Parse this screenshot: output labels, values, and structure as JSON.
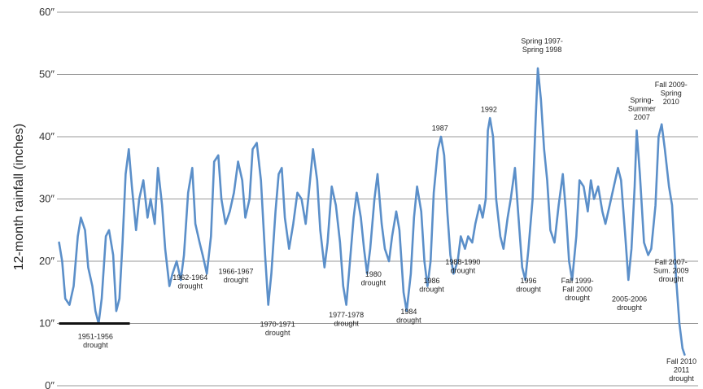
{
  "chart_data": {
    "type": "line",
    "title": "",
    "xlabel": "",
    "ylabel": "12-month rainfall (inches)",
    "ylim": [
      0,
      60
    ],
    "yticks": [
      {
        "value": 0,
        "label": "0″"
      },
      {
        "value": 10,
        "label": "10″"
      },
      {
        "value": 20,
        "label": "20″"
      },
      {
        "value": 30,
        "label": "30″"
      },
      {
        "value": 40,
        "label": "40″"
      },
      {
        "value": 50,
        "label": "50″"
      },
      {
        "value": 60,
        "label": "60″"
      }
    ],
    "xlim": [
      1950,
      2011.6
    ],
    "grid": true,
    "line_color": "#5b8fc9",
    "grid_color": "#999999",
    "drought_bar_color": "#111111",
    "series": [
      {
        "values": [
          [
            1950.2,
            23
          ],
          [
            1950.5,
            20
          ],
          [
            1950.8,
            14
          ],
          [
            1951.2,
            13
          ],
          [
            1951.6,
            16
          ],
          [
            1952.0,
            24
          ],
          [
            1952.3,
            27
          ],
          [
            1952.7,
            25
          ],
          [
            1953.0,
            19
          ],
          [
            1953.4,
            16
          ],
          [
            1953.7,
            12
          ],
          [
            1954.0,
            10
          ],
          [
            1954.3,
            14
          ],
          [
            1954.7,
            24
          ],
          [
            1955.0,
            25
          ],
          [
            1955.4,
            21
          ],
          [
            1955.7,
            12
          ],
          [
            1956.0,
            14
          ],
          [
            1956.3,
            23
          ],
          [
            1956.6,
            34
          ],
          [
            1956.9,
            38
          ],
          [
            1957.2,
            32
          ],
          [
            1957.6,
            25
          ],
          [
            1957.9,
            30
          ],
          [
            1958.3,
            33
          ],
          [
            1958.7,
            27
          ],
          [
            1959.0,
            30
          ],
          [
            1959.4,
            26
          ],
          [
            1959.7,
            35
          ],
          [
            1960.1,
            29
          ],
          [
            1960.4,
            22
          ],
          [
            1960.8,
            16
          ],
          [
            1961.1,
            18
          ],
          [
            1961.5,
            20
          ],
          [
            1961.9,
            17
          ],
          [
            1962.2,
            21
          ],
          [
            1962.6,
            31
          ],
          [
            1963.0,
            35
          ],
          [
            1963.3,
            26
          ],
          [
            1963.7,
            23
          ],
          [
            1964.0,
            21
          ],
          [
            1964.4,
            18
          ],
          [
            1964.8,
            24
          ],
          [
            1965.1,
            36
          ],
          [
            1965.5,
            37
          ],
          [
            1965.8,
            30
          ],
          [
            1966.2,
            26
          ],
          [
            1966.6,
            28
          ],
          [
            1967.0,
            31
          ],
          [
            1967.4,
            36
          ],
          [
            1967.8,
            33
          ],
          [
            1968.1,
            27
          ],
          [
            1968.5,
            30
          ],
          [
            1968.8,
            38
          ],
          [
            1969.2,
            39
          ],
          [
            1969.6,
            33
          ],
          [
            1970.0,
            21
          ],
          [
            1970.3,
            13
          ],
          [
            1970.6,
            18
          ],
          [
            1971.0,
            28
          ],
          [
            1971.3,
            34
          ],
          [
            1971.6,
            35
          ],
          [
            1971.9,
            27
          ],
          [
            1972.3,
            22
          ],
          [
            1972.7,
            26
          ],
          [
            1973.1,
            31
          ],
          [
            1973.5,
            30
          ],
          [
            1973.9,
            26
          ],
          [
            1974.2,
            31
          ],
          [
            1974.6,
            38
          ],
          [
            1975.0,
            33
          ],
          [
            1975.3,
            25
          ],
          [
            1975.7,
            19
          ],
          [
            1976.0,
            23
          ],
          [
            1976.4,
            32
          ],
          [
            1976.8,
            29
          ],
          [
            1977.2,
            23
          ],
          [
            1977.5,
            16
          ],
          [
            1977.8,
            13
          ],
          [
            1978.1,
            19
          ],
          [
            1978.5,
            27
          ],
          [
            1978.8,
            31
          ],
          [
            1979.2,
            27
          ],
          [
            1979.5,
            22
          ],
          [
            1979.8,
            18
          ],
          [
            1980.1,
            22
          ],
          [
            1980.5,
            30
          ],
          [
            1980.8,
            34
          ],
          [
            1981.2,
            26
          ],
          [
            1981.5,
            22
          ],
          [
            1981.9,
            20
          ],
          [
            1982.2,
            24
          ],
          [
            1982.6,
            28
          ],
          [
            1982.9,
            25
          ],
          [
            1983.3,
            15
          ],
          [
            1983.6,
            12
          ],
          [
            1984.0,
            18
          ],
          [
            1984.3,
            27
          ],
          [
            1984.6,
            32
          ],
          [
            1985.0,
            28
          ],
          [
            1985.3,
            20
          ],
          [
            1985.6,
            16
          ],
          [
            1985.9,
            20
          ],
          [
            1986.2,
            31
          ],
          [
            1986.6,
            38
          ],
          [
            1986.9,
            40
          ],
          [
            1987.2,
            37
          ],
          [
            1987.5,
            28
          ],
          [
            1987.8,
            21
          ],
          [
            1988.1,
            18
          ],
          [
            1988.5,
            20
          ],
          [
            1988.8,
            24
          ],
          [
            1989.2,
            22
          ],
          [
            1989.5,
            24
          ],
          [
            1989.9,
            23
          ],
          [
            1990.2,
            26
          ],
          [
            1990.6,
            29
          ],
          [
            1990.9,
            27
          ],
          [
            1991.2,
            30
          ],
          [
            1991.4,
            41
          ],
          [
            1991.6,
            43
          ],
          [
            1991.9,
            40
          ],
          [
            1992.2,
            30
          ],
          [
            1992.6,
            24
          ],
          [
            1992.9,
            22
          ],
          [
            1993.3,
            27
          ],
          [
            1993.6,
            30
          ],
          [
            1994.0,
            35
          ],
          [
            1994.3,
            28
          ],
          [
            1994.7,
            19
          ],
          [
            1995.0,
            17
          ],
          [
            1995.3,
            22
          ],
          [
            1995.7,
            30
          ],
          [
            1996.0,
            43
          ],
          [
            1996.2,
            51
          ],
          [
            1996.5,
            46
          ],
          [
            1996.8,
            38
          ],
          [
            1997.1,
            33
          ],
          [
            1997.4,
            25
          ],
          [
            1997.8,
            23
          ],
          [
            1998.2,
            29
          ],
          [
            1998.6,
            34
          ],
          [
            1998.9,
            28
          ],
          [
            1999.2,
            20
          ],
          [
            1999.5,
            17
          ],
          [
            1999.9,
            24
          ],
          [
            2000.2,
            33
          ],
          [
            2000.6,
            32
          ],
          [
            2001.0,
            28
          ],
          [
            2001.3,
            33
          ],
          [
            2001.6,
            30
          ],
          [
            2002.0,
            32
          ],
          [
            2002.4,
            28
          ],
          [
            2002.7,
            26
          ],
          [
            2003.1,
            29
          ],
          [
            2003.5,
            32
          ],
          [
            2003.9,
            35
          ],
          [
            2004.2,
            33
          ],
          [
            2004.6,
            24
          ],
          [
            2004.9,
            17
          ],
          [
            2005.2,
            22
          ],
          [
            2005.5,
            32
          ],
          [
            2005.7,
            41
          ],
          [
            2006.0,
            34
          ],
          [
            2006.4,
            23
          ],
          [
            2006.8,
            21
          ],
          [
            2007.1,
            22
          ],
          [
            2007.5,
            29
          ],
          [
            2007.8,
            40
          ],
          [
            2008.1,
            42
          ],
          [
            2008.4,
            38
          ],
          [
            2008.8,
            32
          ],
          [
            2009.1,
            29
          ],
          [
            2009.5,
            17
          ],
          [
            2009.8,
            10
          ],
          [
            2010.1,
            6
          ],
          [
            2010.3,
            5
          ]
        ]
      }
    ],
    "drought_bar": {
      "from": 1950.2,
      "to": 1957.0,
      "value": 10
    },
    "annotations": [
      {
        "lines": [
          "1951-1956",
          "drought"
        ],
        "x": 1953.7,
        "y": 7.5
      },
      {
        "lines": [
          "1962-1964",
          "drought"
        ],
        "x": 1962.8,
        "y": 17
      },
      {
        "lines": [
          "1966-1967",
          "drought"
        ],
        "x": 1967.2,
        "y": 18
      },
      {
        "lines": [
          "1970-1971",
          "drought"
        ],
        "x": 1971.2,
        "y": 9.5
      },
      {
        "lines": [
          "1977-1978",
          "drought"
        ],
        "x": 1977.8,
        "y": 11
      },
      {
        "lines": [
          "1980",
          "drought"
        ],
        "x": 1980.4,
        "y": 17.5
      },
      {
        "lines": [
          "1984",
          "drought"
        ],
        "x": 1983.8,
        "y": 11.5
      },
      {
        "lines": [
          "1986",
          "drought"
        ],
        "x": 1986.0,
        "y": 16.5
      },
      {
        "lines": [
          "1987"
        ],
        "x": 1986.8,
        "y": 41
      },
      {
        "lines": [
          "1988-1990",
          "drought"
        ],
        "x": 1989.0,
        "y": 19.5
      },
      {
        "lines": [
          "1992"
        ],
        "x": 1991.5,
        "y": 44
      },
      {
        "lines": [
          "1996",
          "drought"
        ],
        "x": 1995.3,
        "y": 16.5
      },
      {
        "lines": [
          "Spring 1997-",
          "Spring 1998"
        ],
        "x": 1996.6,
        "y": 55
      },
      {
        "lines": [
          "Fall 1999-",
          "Fall 2000",
          "drought"
        ],
        "x": 2000.0,
        "y": 16.5
      },
      {
        "lines": [
          "2005-2006",
          "drought"
        ],
        "x": 2005.0,
        "y": 13.5
      },
      {
        "lines": [
          "Spring-",
          "Summer",
          "2007"
        ],
        "x": 2006.2,
        "y": 45.5
      },
      {
        "lines": [
          "Fall 2007-",
          "Sum. 2009",
          "drought"
        ],
        "x": 2009.0,
        "y": 19.5
      },
      {
        "lines": [
          "Fall 2009-",
          "Spring",
          "2010"
        ],
        "x": 2009.0,
        "y": 48
      },
      {
        "lines": [
          "Fall 2010",
          "2011",
          "drought"
        ],
        "x": 2010.0,
        "y": 3.5
      }
    ]
  }
}
